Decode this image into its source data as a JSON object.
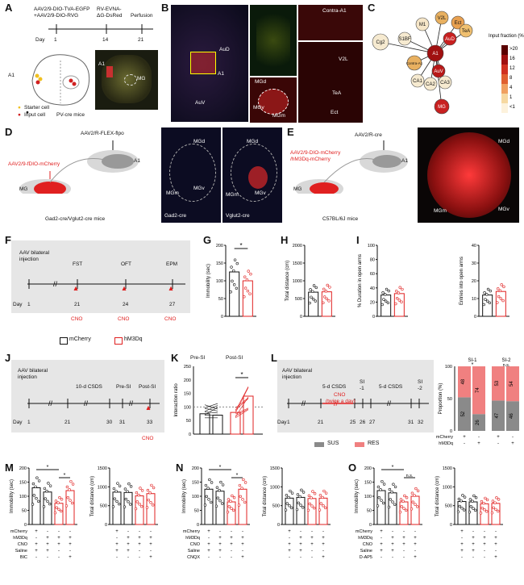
{
  "labels": {
    "A": "A",
    "B": "B",
    "C": "C",
    "D": "D",
    "E": "E",
    "F": "F",
    "G": "G",
    "H": "H",
    "I": "I",
    "J": "J",
    "K": "K",
    "L": "L",
    "M": "M",
    "N": "N",
    "O": "O"
  },
  "panelA": {
    "virus1": "AAV2/9-DIO-TVA-EGFP",
    "virus2": "+AAV2/9-DIO-RVG",
    "virus3": "RV-EVNA-",
    "virus4": "ΔG-DsRed",
    "perfusion": "Perfusion",
    "day": "Day",
    "d1": "1",
    "d14": "14",
    "d21": "21",
    "a1": "A1",
    "a1b": "A1",
    "mg": "MG",
    "mice": "PV-cre mice",
    "starter": "Starter cell",
    "input": "Input cell"
  },
  "panelB": {
    "aud": "AuD",
    "a1": "A1",
    "auv": "AuV",
    "contra": "Contra-A1",
    "v2l": "V2L",
    "tea": "TeA",
    "ect": "Ect",
    "mgd": "MGd",
    "mgv": "MGv",
    "mgm": "MGm"
  },
  "panelC": {
    "nodes": [
      "M1",
      "V2L",
      "Ect",
      "TeA",
      "S1BF",
      "AuD",
      "Cg2",
      "A1",
      "Contra-A1",
      "AuV",
      "CA1",
      "CA2",
      "CA3",
      "MG"
    ],
    "legend_title": "Input fraction (%)",
    "ticks": [
      ">20",
      "16",
      "12",
      "8",
      "4",
      "1",
      "<1"
    ]
  },
  "panelD": {
    "virus": "AAV2/9-fDIO-mCherry",
    "virus2": "AAV2/R-FLEX-flpo",
    "a1": "A1",
    "mg": "MG",
    "mice": "Gad2-cre/Vglut2-cre mice",
    "mgd": "MGd",
    "mgm": "MGm",
    "mgv": "MGv",
    "mgd2": "MGd",
    "mgm2": "MGm",
    "mgv2": "MGv",
    "img1": "Gad2-cre",
    "img2": "Vglut2-cre"
  },
  "panelE": {
    "virus": "AAV2/9-DIO-mCherry",
    "virus_b": "/hM3Dq-mCherry",
    "virus2": "AAV2/R-cre",
    "a1": "A1",
    "mg": "MG",
    "mice": "C57BL/6J mice",
    "mgd": "MGd",
    "mgm": "MGm",
    "mgv": "MGv"
  },
  "panelF": {
    "aav": "AAV bilateral",
    "inj": "injection",
    "fst": "FST",
    "oft": "OFT",
    "epm": "EPM",
    "day": "Day",
    "d1": "1",
    "d21": "21",
    "d24": "24",
    "d27": "27",
    "cno1": "CNO",
    "cno2": "CNO",
    "cno3": "CNO",
    "leg1": "mCherry",
    "leg2": "hM3Dq"
  },
  "panelG": {
    "ylabel": "Immobility (sec)",
    "sig": "*",
    "yticks": [
      "0",
      "50",
      "100",
      "150",
      "200"
    ],
    "values": [
      125,
      100
    ]
  },
  "panelH": {
    "ylabel": "Total distance (cm)",
    "yticks": [
      "0",
      "500",
      "1000",
      "1500",
      "2000"
    ],
    "values": [
      680,
      690
    ]
  },
  "panelI": {
    "ylabel1": "% Duration in open arms",
    "yticks1": [
      "0",
      "20",
      "40",
      "60",
      "80",
      "100"
    ],
    "values1": [
      30,
      32
    ],
    "ylabel2": "Entries into open arms",
    "yticks2": [
      "0",
      "10",
      "20",
      "30",
      "40"
    ],
    "values2": [
      12,
      14
    ]
  },
  "panelJ": {
    "aav": "AAV bilateral",
    "inj": "injection",
    "csds": "10-d CSDS",
    "pre": "Pre-SI",
    "post": "Post-SI",
    "day": "Day",
    "d1": "1",
    "d21": "21",
    "d30": "30",
    "d31": "31",
    "d33": "33",
    "cno": "CNO"
  },
  "panelK": {
    "ylabel": "Interaction ratio",
    "pre": "Pre-SI",
    "post": "Post-SI",
    "sig": "*",
    "yticks": [
      "0",
      "50",
      "100",
      "150",
      "200",
      "250"
    ],
    "values": [
      75,
      70,
      80,
      140
    ]
  },
  "panelL": {
    "aav": "AAV bilateral",
    "inj": "injection",
    "csds1": "5-d CSDS",
    "si1": "SI",
    "si1b": "-1",
    "csds2": "5-d CSDS",
    "si2": "SI",
    "si2b": "-2",
    "cno": "CNO",
    "cno2": "(twice a day)",
    "day": "Day",
    "d1": "1",
    "d21": "21",
    "d25": "25",
    "d26": "26",
    "d27": "27",
    "d31": "31",
    "d32": "32",
    "sus": "SUS",
    "res": "RES"
  },
  "panelL2": {
    "ylabel": "Proportion (%)",
    "si1": "SI-1",
    "si2": "SI-2",
    "sig1": "*",
    "sig2": "n.s.",
    "yticks": [
      "0",
      "50",
      "100"
    ],
    "bars": [
      {
        "sus": 52,
        "res": 48
      },
      {
        "sus": 26,
        "res": 74
      },
      {
        "sus": 47,
        "res": 53
      },
      {
        "sus": 46,
        "res": 54
      }
    ],
    "row1": "mCherry",
    "row2": "hM3Dq",
    "marks1": [
      "+",
      "-",
      "+",
      "-"
    ],
    "marks2": [
      "-",
      "+",
      "-",
      "+"
    ]
  },
  "panelM": {
    "ylabel1": "Immobility (sec)",
    "ylabel2": "Total distance (cm)",
    "yticks1": [
      "0",
      "50",
      "100",
      "150",
      "200"
    ],
    "yticks2": [
      "0",
      "500",
      "1000",
      "1500"
    ],
    "values1": [
      130,
      115,
      75,
      120
    ],
    "values2": [
      860,
      850,
      760,
      820
    ],
    "sig": "*",
    "sig2": "*",
    "rows": [
      "mCherry",
      "hM3Dq",
      "CNO",
      "Saline",
      "BIC"
    ],
    "marks": [
      [
        "+",
        "-",
        "-",
        "-"
      ],
      [
        "-",
        "+",
        "+",
        "+"
      ],
      [
        "+",
        "+",
        "+",
        "+"
      ],
      [
        "+",
        "+",
        "-",
        "-"
      ],
      [
        "-",
        "-",
        "-",
        "+"
      ]
    ]
  },
  "panelN": {
    "ylabel1": "Immobility (sec)",
    "ylabel2": "Total distance (cm)",
    "yticks1": [
      "0",
      "50",
      "100",
      "150",
      "200"
    ],
    "yticks2": [
      "0",
      "500",
      "1000",
      "1500"
    ],
    "values1": [
      125,
      118,
      80,
      125
    ],
    "values2": [
      700,
      720,
      690,
      700
    ],
    "sig": "*",
    "sig2": "*",
    "rows": [
      "mCherry",
      "hM3Dq",
      "CNO",
      "Saline",
      "CNQX"
    ],
    "marks": [
      [
        "+",
        "-",
        "-",
        "-"
      ],
      [
        "-",
        "+",
        "+",
        "+"
      ],
      [
        "+",
        "+",
        "+",
        "+"
      ],
      [
        "+",
        "+",
        "-",
        "-"
      ],
      [
        "-",
        "-",
        "-",
        "+"
      ]
    ]
  },
  "panelO": {
    "ylabel1": "Immobility (sec)",
    "ylabel2": "Total distance (cm)",
    "yticks1": [
      "0",
      "50",
      "100",
      "150",
      "200"
    ],
    "yticks2": [
      "0",
      "500",
      "1000",
      "1500"
    ],
    "values1": [
      120,
      112,
      80,
      100
    ],
    "values2": [
      610,
      600,
      550,
      560
    ],
    "sig": "*",
    "sig2": "n.s.",
    "rows": [
      "mCherry",
      "hM3Dq",
      "CNO",
      "Saline",
      "D-AP5"
    ],
    "marks": [
      [
        "+",
        "-",
        "-",
        "-"
      ],
      [
        "-",
        "+",
        "+",
        "+"
      ],
      [
        "+",
        "+",
        "+",
        "+"
      ],
      [
        "+",
        "+",
        "-",
        "-"
      ],
      [
        "-",
        "-",
        "-",
        "+"
      ]
    ]
  },
  "colors": {
    "red": "#e02020",
    "gray": "#8a8a8a",
    "pink": "#f08080",
    "dark": "#111111"
  }
}
